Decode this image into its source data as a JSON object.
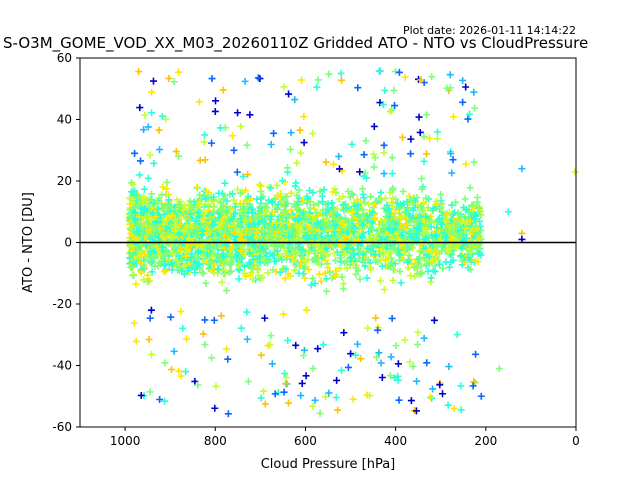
{
  "plot_date": "Plot date: 2026-01-11 14:14:22",
  "chart_data": {
    "type": "scatter",
    "title": "S-O3M_GOME_VOD_XX_M03_20260110Z Gridded ATO - NTO vs CloudPressure",
    "xlabel": "Cloud Pressure [hPa]",
    "ylabel": "ATO - NTO [DU]",
    "xlim": [
      1100,
      0
    ],
    "ylim": [
      -60,
      60
    ],
    "x_inverted": true,
    "xticks": [
      1000,
      800,
      600,
      400,
      200,
      0
    ],
    "yticks": [
      -60,
      -40,
      -20,
      0,
      20,
      40,
      60
    ],
    "reference_line_y": 0,
    "marker": "+",
    "grid": false,
    "colors": [
      "#0000cd",
      "#0a64ff",
      "#1fb8ff",
      "#2affd8",
      "#7cff79",
      "#c4ff33",
      "#ffe600",
      "#ffc000"
    ],
    "cluster": {
      "x_range": [
        1000,
        150
      ],
      "core_y_range": [
        -20,
        25
      ],
      "sparse_y_range": [
        -57,
        58
      ]
    }
  }
}
